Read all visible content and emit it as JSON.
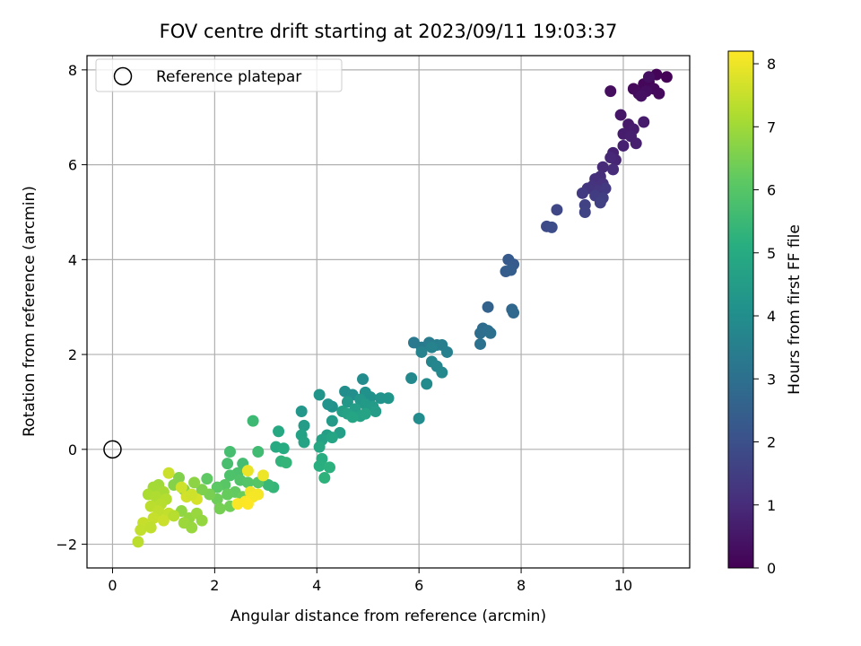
{
  "chart_data": {
    "type": "scatter",
    "title": "FOV centre drift starting at 2023/09/11 19:03:37",
    "xlabel": "Angular distance from reference (arcmin)",
    "ylabel": "Rotation from reference (arcmin)",
    "xlim": [
      -0.5,
      11.3
    ],
    "ylim": [
      -2.5,
      8.3
    ],
    "xticks": [
      0,
      2,
      4,
      6,
      8,
      10
    ],
    "yticks": [
      -2,
      0,
      2,
      4,
      6,
      8
    ],
    "grid": true,
    "legend": {
      "placement": "top-left",
      "entries": [
        {
          "label": "Reference platepar",
          "marker": "open-circle"
        }
      ]
    },
    "reference_point": {
      "x": 0,
      "y": 0
    },
    "colorbar": {
      "label": "Hours from first FF file",
      "range": [
        0,
        8.2
      ],
      "ticks": [
        0,
        1,
        2,
        3,
        4,
        5,
        6,
        7,
        8
      ],
      "colormap": "viridis"
    },
    "points": [
      {
        "x": 10.85,
        "y": 7.85,
        "t": 0.05
      },
      {
        "x": 10.65,
        "y": 7.9,
        "t": 0.1
      },
      {
        "x": 10.5,
        "y": 7.75,
        "t": 0.12
      },
      {
        "x": 10.4,
        "y": 7.7,
        "t": 0.15
      },
      {
        "x": 10.6,
        "y": 7.6,
        "t": 0.18
      },
      {
        "x": 10.7,
        "y": 7.5,
        "t": 0.2
      },
      {
        "x": 10.2,
        "y": 7.6,
        "t": 0.22
      },
      {
        "x": 10.3,
        "y": 7.5,
        "t": 0.25
      },
      {
        "x": 10.45,
        "y": 7.55,
        "t": 0.28
      },
      {
        "x": 9.75,
        "y": 7.55,
        "t": 0.3
      },
      {
        "x": 10.5,
        "y": 7.85,
        "t": 0.33
      },
      {
        "x": 10.35,
        "y": 7.45,
        "t": 0.36
      },
      {
        "x": 9.95,
        "y": 7.05,
        "t": 0.5
      },
      {
        "x": 10.1,
        "y": 6.85,
        "t": 0.55
      },
      {
        "x": 10.4,
        "y": 6.9,
        "t": 0.6
      },
      {
        "x": 10.2,
        "y": 6.75,
        "t": 0.62
      },
      {
        "x": 10.0,
        "y": 6.65,
        "t": 0.65
      },
      {
        "x": 10.15,
        "y": 6.6,
        "t": 0.7
      },
      {
        "x": 10.25,
        "y": 6.45,
        "t": 0.72
      },
      {
        "x": 10.0,
        "y": 6.4,
        "t": 0.75
      },
      {
        "x": 9.8,
        "y": 6.25,
        "t": 0.8
      },
      {
        "x": 9.85,
        "y": 6.1,
        "t": 0.85
      },
      {
        "x": 9.75,
        "y": 6.15,
        "t": 0.9
      },
      {
        "x": 9.6,
        "y": 5.95,
        "t": 0.95
      },
      {
        "x": 9.8,
        "y": 5.9,
        "t": 1.0
      },
      {
        "x": 9.55,
        "y": 5.75,
        "t": 1.05
      },
      {
        "x": 9.45,
        "y": 5.7,
        "t": 1.1
      },
      {
        "x": 9.6,
        "y": 5.6,
        "t": 1.15
      },
      {
        "x": 9.4,
        "y": 5.55,
        "t": 1.2
      },
      {
        "x": 9.3,
        "y": 5.5,
        "t": 1.25
      },
      {
        "x": 9.5,
        "y": 5.45,
        "t": 1.3
      },
      {
        "x": 9.65,
        "y": 5.5,
        "t": 1.35
      },
      {
        "x": 9.2,
        "y": 5.4,
        "t": 1.4
      },
      {
        "x": 9.45,
        "y": 5.35,
        "t": 1.45
      },
      {
        "x": 9.6,
        "y": 5.3,
        "t": 1.5
      },
      {
        "x": 9.55,
        "y": 5.2,
        "t": 1.55
      },
      {
        "x": 9.25,
        "y": 5.15,
        "t": 1.6
      },
      {
        "x": 9.25,
        "y": 5.0,
        "t": 1.65
      },
      {
        "x": 8.7,
        "y": 5.05,
        "t": 1.75
      },
      {
        "x": 8.5,
        "y": 4.7,
        "t": 1.85
      },
      {
        "x": 8.6,
        "y": 4.68,
        "t": 1.9
      },
      {
        "x": 7.75,
        "y": 4.0,
        "t": 2.3
      },
      {
        "x": 7.85,
        "y": 3.9,
        "t": 2.35
      },
      {
        "x": 7.7,
        "y": 3.75,
        "t": 2.4
      },
      {
        "x": 7.8,
        "y": 3.78,
        "t": 2.45
      },
      {
        "x": 7.35,
        "y": 3.0,
        "t": 2.6
      },
      {
        "x": 7.82,
        "y": 2.95,
        "t": 2.7
      },
      {
        "x": 7.85,
        "y": 2.88,
        "t": 2.75
      },
      {
        "x": 7.25,
        "y": 2.55,
        "t": 2.85
      },
      {
        "x": 7.2,
        "y": 2.45,
        "t": 2.9
      },
      {
        "x": 7.35,
        "y": 2.5,
        "t": 2.95
      },
      {
        "x": 7.4,
        "y": 2.45,
        "t": 3.0
      },
      {
        "x": 7.2,
        "y": 2.22,
        "t": 3.05
      },
      {
        "x": 5.9,
        "y": 2.25,
        "t": 3.3
      },
      {
        "x": 6.05,
        "y": 2.15,
        "t": 3.35
      },
      {
        "x": 6.2,
        "y": 2.25,
        "t": 3.4
      },
      {
        "x": 6.35,
        "y": 2.2,
        "t": 3.45
      },
      {
        "x": 6.45,
        "y": 2.2,
        "t": 3.5
      },
      {
        "x": 6.55,
        "y": 2.05,
        "t": 3.55
      },
      {
        "x": 6.25,
        "y": 2.15,
        "t": 3.6
      },
      {
        "x": 6.05,
        "y": 2.05,
        "t": 3.65
      },
      {
        "x": 6.25,
        "y": 1.85,
        "t": 3.7
      },
      {
        "x": 6.35,
        "y": 1.75,
        "t": 3.75
      },
      {
        "x": 6.45,
        "y": 1.62,
        "t": 3.8
      },
      {
        "x": 5.85,
        "y": 1.5,
        "t": 3.85
      },
      {
        "x": 6.15,
        "y": 1.38,
        "t": 3.9
      },
      {
        "x": 6.0,
        "y": 0.65,
        "t": 3.95
      },
      {
        "x": 4.9,
        "y": 1.48,
        "t": 3.95
      },
      {
        "x": 4.55,
        "y": 1.22,
        "t": 4.0
      },
      {
        "x": 4.7,
        "y": 1.15,
        "t": 4.05
      },
      {
        "x": 4.95,
        "y": 1.2,
        "t": 4.1
      },
      {
        "x": 5.05,
        "y": 1.1,
        "t": 4.15
      },
      {
        "x": 5.25,
        "y": 1.08,
        "t": 4.2
      },
      {
        "x": 5.4,
        "y": 1.08,
        "t": 4.25
      },
      {
        "x": 4.85,
        "y": 1.05,
        "t": 4.3
      },
      {
        "x": 4.6,
        "y": 1.0,
        "t": 4.35
      },
      {
        "x": 4.95,
        "y": 0.95,
        "t": 4.4
      },
      {
        "x": 5.1,
        "y": 0.9,
        "t": 4.45
      },
      {
        "x": 5.15,
        "y": 0.8,
        "t": 4.5
      },
      {
        "x": 4.75,
        "y": 0.85,
        "t": 4.55
      },
      {
        "x": 4.5,
        "y": 0.8,
        "t": 4.6
      },
      {
        "x": 4.6,
        "y": 0.75,
        "t": 4.65
      },
      {
        "x": 4.85,
        "y": 0.7,
        "t": 4.7
      },
      {
        "x": 4.95,
        "y": 0.75,
        "t": 4.75
      },
      {
        "x": 4.7,
        "y": 0.68,
        "t": 4.8
      },
      {
        "x": 4.3,
        "y": 0.9,
        "t": 4.1
      },
      {
        "x": 4.22,
        "y": 0.95,
        "t": 4.2
      },
      {
        "x": 4.05,
        "y": 1.15,
        "t": 4.25
      },
      {
        "x": 3.7,
        "y": 0.8,
        "t": 4.3
      },
      {
        "x": 4.3,
        "y": 0.6,
        "t": 4.45
      },
      {
        "x": 3.75,
        "y": 0.5,
        "t": 4.5
      },
      {
        "x": 4.45,
        "y": 0.35,
        "t": 4.55
      },
      {
        "x": 4.2,
        "y": 0.3,
        "t": 4.6
      },
      {
        "x": 4.1,
        "y": 0.2,
        "t": 4.65
      },
      {
        "x": 3.7,
        "y": 0.3,
        "t": 4.7
      },
      {
        "x": 3.75,
        "y": 0.15,
        "t": 4.75
      },
      {
        "x": 4.3,
        "y": 0.25,
        "t": 4.8
      },
      {
        "x": 4.05,
        "y": 0.05,
        "t": 4.85
      },
      {
        "x": 3.25,
        "y": 0.38,
        "t": 4.9
      },
      {
        "x": 3.2,
        "y": 0.05,
        "t": 5.0
      },
      {
        "x": 3.35,
        "y": 0.02,
        "t": 5.05
      },
      {
        "x": 4.1,
        "y": -0.2,
        "t": 5.1
      },
      {
        "x": 4.05,
        "y": -0.35,
        "t": 5.15
      },
      {
        "x": 4.25,
        "y": -0.38,
        "t": 5.2
      },
      {
        "x": 4.15,
        "y": -0.6,
        "t": 5.25
      },
      {
        "x": 3.3,
        "y": -0.25,
        "t": 5.3
      },
      {
        "x": 3.4,
        "y": -0.28,
        "t": 5.35
      },
      {
        "x": 3.15,
        "y": -0.8,
        "t": 5.4
      },
      {
        "x": 3.05,
        "y": -0.75,
        "t": 5.45
      },
      {
        "x": 2.75,
        "y": 0.6,
        "t": 5.55
      },
      {
        "x": 2.85,
        "y": -0.05,
        "t": 5.6
      },
      {
        "x": 2.55,
        "y": -0.3,
        "t": 5.65
      },
      {
        "x": 2.3,
        "y": -0.05,
        "t": 5.7
      },
      {
        "x": 2.25,
        "y": -0.3,
        "t": 5.75
      },
      {
        "x": 2.45,
        "y": -0.5,
        "t": 5.8
      },
      {
        "x": 2.3,
        "y": -0.55,
        "t": 5.85
      },
      {
        "x": 2.5,
        "y": -0.65,
        "t": 5.9
      },
      {
        "x": 2.65,
        "y": -0.7,
        "t": 5.95
      },
      {
        "x": 2.85,
        "y": -0.7,
        "t": 6.0
      },
      {
        "x": 2.2,
        "y": -0.75,
        "t": 6.05
      },
      {
        "x": 2.05,
        "y": -0.8,
        "t": 6.1
      },
      {
        "x": 1.85,
        "y": -0.62,
        "t": 6.15
      },
      {
        "x": 2.4,
        "y": -0.9,
        "t": 6.2
      },
      {
        "x": 2.25,
        "y": -0.95,
        "t": 6.25
      },
      {
        "x": 2.55,
        "y": -1.0,
        "t": 6.3
      },
      {
        "x": 2.05,
        "y": -1.05,
        "t": 6.35
      },
      {
        "x": 2.3,
        "y": -1.2,
        "t": 6.4
      },
      {
        "x": 2.1,
        "y": -1.25,
        "t": 6.45
      },
      {
        "x": 1.9,
        "y": -0.95,
        "t": 6.5
      },
      {
        "x": 1.75,
        "y": -0.85,
        "t": 6.55
      },
      {
        "x": 1.3,
        "y": -0.6,
        "t": 6.6
      },
      {
        "x": 1.2,
        "y": -0.75,
        "t": 6.65
      },
      {
        "x": 1.4,
        "y": -0.85,
        "t": 6.7
      },
      {
        "x": 1.6,
        "y": -0.7,
        "t": 6.75
      },
      {
        "x": 1.35,
        "y": -1.3,
        "t": 6.8
      },
      {
        "x": 1.5,
        "y": -1.45,
        "t": 6.85
      },
      {
        "x": 1.65,
        "y": -1.35,
        "t": 6.9
      },
      {
        "x": 1.4,
        "y": -1.55,
        "t": 6.95
      },
      {
        "x": 1.55,
        "y": -1.65,
        "t": 6.9
      },
      {
        "x": 1.75,
        "y": -1.5,
        "t": 6.85
      },
      {
        "x": 0.9,
        "y": -0.75,
        "t": 7.0
      },
      {
        "x": 0.8,
        "y": -0.8,
        "t": 7.05
      },
      {
        "x": 1.0,
        "y": -0.9,
        "t": 7.1
      },
      {
        "x": 0.7,
        "y": -0.95,
        "t": 7.15
      },
      {
        "x": 0.85,
        "y": -1.0,
        "t": 7.2
      },
      {
        "x": 1.05,
        "y": -1.05,
        "t": 7.25
      },
      {
        "x": 0.95,
        "y": -1.15,
        "t": 7.3
      },
      {
        "x": 0.75,
        "y": -1.2,
        "t": 7.35
      },
      {
        "x": 0.9,
        "y": -1.3,
        "t": 7.4
      },
      {
        "x": 1.1,
        "y": -1.35,
        "t": 7.45
      },
      {
        "x": 0.8,
        "y": -1.45,
        "t": 7.5
      },
      {
        "x": 1.0,
        "y": -1.5,
        "t": 7.55
      },
      {
        "x": 0.6,
        "y": -1.55,
        "t": 7.5
      },
      {
        "x": 0.55,
        "y": -1.7,
        "t": 7.45
      },
      {
        "x": 0.75,
        "y": -1.65,
        "t": 7.4
      },
      {
        "x": 0.5,
        "y": -1.95,
        "t": 7.35
      },
      {
        "x": 1.2,
        "y": -1.4,
        "t": 7.3
      },
      {
        "x": 1.1,
        "y": -0.5,
        "t": 7.55
      },
      {
        "x": 1.35,
        "y": -0.8,
        "t": 7.6
      },
      {
        "x": 1.45,
        "y": -1.0,
        "t": 7.65
      },
      {
        "x": 1.65,
        "y": -1.05,
        "t": 7.7
      },
      {
        "x": 1.55,
        "y": -0.95,
        "t": 7.6
      },
      {
        "x": 2.65,
        "y": -0.45,
        "t": 7.95
      },
      {
        "x": 2.95,
        "y": -0.55,
        "t": 8.0
      },
      {
        "x": 2.7,
        "y": -0.9,
        "t": 8.05
      },
      {
        "x": 2.85,
        "y": -0.95,
        "t": 8.1
      },
      {
        "x": 2.75,
        "y": -1.0,
        "t": 8.1
      },
      {
        "x": 2.6,
        "y": -1.1,
        "t": 8.15
      },
      {
        "x": 2.45,
        "y": -1.15,
        "t": 8.15
      },
      {
        "x": 2.65,
        "y": -1.15,
        "t": 8.2
      }
    ]
  }
}
